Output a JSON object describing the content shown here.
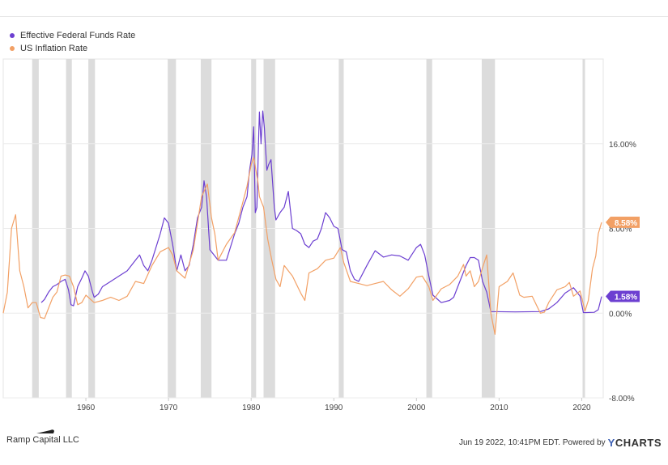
{
  "legend": {
    "items": [
      {
        "label": "Effective Federal Funds Rate",
        "color": "#6c3fd1"
      },
      {
        "label": "US Inflation Rate",
        "color": "#f2a065"
      }
    ]
  },
  "footer": {
    "left": "Ramp Capital LLC",
    "right": "Jun 19 2022, 10:41PM EDT. Powered by",
    "brand_y": "Y",
    "brand_rest": "CHARTS"
  },
  "chart_data": {
    "type": "line",
    "xlim": [
      1950,
      2022.6
    ],
    "ylim": [
      -8,
      24
    ],
    "y_ticks": [
      {
        "value": 16,
        "label": "16.00%"
      },
      {
        "value": 8,
        "label": "8.00%"
      },
      {
        "value": 0,
        "label": "0.00%"
      },
      {
        "value": -8,
        "label": "-8.00%"
      }
    ],
    "x_ticks": [
      {
        "value": 1960,
        "label": "1960"
      },
      {
        "value": 1970,
        "label": "1970"
      },
      {
        "value": 1980,
        "label": "1980"
      },
      {
        "value": 1990,
        "label": "1990"
      },
      {
        "value": 2000,
        "label": "2000"
      },
      {
        "value": 2010,
        "label": "2010"
      },
      {
        "value": 2020,
        "label": "2020"
      }
    ],
    "recessions": [
      [
        1953.5,
        1954.3
      ],
      [
        1957.6,
        1958.3
      ],
      [
        1960.3,
        1961.1
      ],
      [
        1969.9,
        1970.9
      ],
      [
        1973.9,
        1975.2
      ],
      [
        1980.0,
        1980.6
      ],
      [
        1981.5,
        1982.9
      ],
      [
        1990.6,
        1991.2
      ],
      [
        2001.2,
        2001.9
      ],
      [
        2007.9,
        2009.5
      ],
      [
        2020.1,
        2020.4
      ]
    ],
    "series": [
      {
        "name": "Effective Federal Funds Rate",
        "color": "#6c3fd1",
        "end_label": "1.58%",
        "points": [
          [
            1954.6,
            1.0
          ],
          [
            1955.0,
            1.3
          ],
          [
            1955.5,
            2.0
          ],
          [
            1956.0,
            2.5
          ],
          [
            1956.5,
            2.7
          ],
          [
            1957.0,
            3.0
          ],
          [
            1957.5,
            3.2
          ],
          [
            1957.9,
            2.2
          ],
          [
            1958.2,
            0.8
          ],
          [
            1958.5,
            0.7
          ],
          [
            1959.0,
            2.5
          ],
          [
            1959.5,
            3.3
          ],
          [
            1959.9,
            4.0
          ],
          [
            1960.3,
            3.5
          ],
          [
            1960.8,
            2.0
          ],
          [
            1961.0,
            1.5
          ],
          [
            1961.5,
            1.8
          ],
          [
            1962.0,
            2.5
          ],
          [
            1963.0,
            3.0
          ],
          [
            1964.0,
            3.5
          ],
          [
            1965.0,
            4.0
          ],
          [
            1966.0,
            5.0
          ],
          [
            1966.5,
            5.5
          ],
          [
            1967.0,
            4.5
          ],
          [
            1967.5,
            4.0
          ],
          [
            1968.0,
            5.0
          ],
          [
            1969.0,
            7.5
          ],
          [
            1969.5,
            9.0
          ],
          [
            1970.0,
            8.5
          ],
          [
            1970.5,
            6.5
          ],
          [
            1971.0,
            4.0
          ],
          [
            1971.5,
            5.5
          ],
          [
            1972.0,
            4.0
          ],
          [
            1972.5,
            4.5
          ],
          [
            1973.0,
            6.5
          ],
          [
            1973.5,
            9.0
          ],
          [
            1974.0,
            10.0
          ],
          [
            1974.3,
            12.5
          ],
          [
            1974.6,
            11.0
          ],
          [
            1975.0,
            6.0
          ],
          [
            1975.5,
            5.5
          ],
          [
            1976.0,
            5.0
          ],
          [
            1977.0,
            5.0
          ],
          [
            1978.0,
            7.5
          ],
          [
            1978.5,
            8.5
          ],
          [
            1979.0,
            10.0
          ],
          [
            1979.5,
            11.0
          ],
          [
            1979.8,
            13.5
          ],
          [
            1980.1,
            15.0
          ],
          [
            1980.3,
            17.6
          ],
          [
            1980.5,
            9.5
          ],
          [
            1980.7,
            10.0
          ],
          [
            1980.9,
            16.5
          ],
          [
            1981.0,
            19.0
          ],
          [
            1981.2,
            16.0
          ],
          [
            1981.4,
            19.1
          ],
          [
            1981.6,
            17.5
          ],
          [
            1981.9,
            13.5
          ],
          [
            1982.1,
            14.0
          ],
          [
            1982.4,
            14.5
          ],
          [
            1982.8,
            10.0
          ],
          [
            1983.0,
            8.8
          ],
          [
            1983.5,
            9.5
          ],
          [
            1984.0,
            10.0
          ],
          [
            1984.5,
            11.5
          ],
          [
            1985.0,
            8.0
          ],
          [
            1985.5,
            7.8
          ],
          [
            1986.0,
            7.5
          ],
          [
            1986.5,
            6.5
          ],
          [
            1987.0,
            6.2
          ],
          [
            1987.5,
            6.8
          ],
          [
            1988.0,
            7.0
          ],
          [
            1988.5,
            8.0
          ],
          [
            1989.0,
            9.5
          ],
          [
            1989.5,
            9.0
          ],
          [
            1990.0,
            8.2
          ],
          [
            1990.5,
            8.0
          ],
          [
            1991.0,
            6.0
          ],
          [
            1991.5,
            5.8
          ],
          [
            1992.0,
            4.0
          ],
          [
            1992.5,
            3.2
          ],
          [
            1993.0,
            3.0
          ],
          [
            1994.0,
            4.5
          ],
          [
            1995.0,
            5.9
          ],
          [
            1996.0,
            5.3
          ],
          [
            1997.0,
            5.5
          ],
          [
            1998.0,
            5.4
          ],
          [
            1999.0,
            5.0
          ],
          [
            2000.0,
            6.2
          ],
          [
            2000.5,
            6.5
          ],
          [
            2001.0,
            5.5
          ],
          [
            2001.5,
            3.5
          ],
          [
            2002.0,
            1.7
          ],
          [
            2003.0,
            1.0
          ],
          [
            2004.0,
            1.2
          ],
          [
            2004.5,
            1.5
          ],
          [
            2005.0,
            2.5
          ],
          [
            2006.0,
            4.5
          ],
          [
            2006.5,
            5.25
          ],
          [
            2007.0,
            5.25
          ],
          [
            2007.5,
            5.0
          ],
          [
            2008.0,
            3.0
          ],
          [
            2008.5,
            2.0
          ],
          [
            2009.0,
            0.15
          ],
          [
            2012.0,
            0.12
          ],
          [
            2015.0,
            0.15
          ],
          [
            2016.0,
            0.4
          ],
          [
            2017.0,
            1.0
          ],
          [
            2018.0,
            1.9
          ],
          [
            2019.0,
            2.4
          ],
          [
            2019.8,
            1.6
          ],
          [
            2020.2,
            0.05
          ],
          [
            2021.5,
            0.08
          ],
          [
            2022.0,
            0.33
          ],
          [
            2022.4,
            1.58
          ]
        ]
      },
      {
        "name": "US Inflation Rate",
        "color": "#f2a065",
        "end_label": "8.58%",
        "points": [
          [
            1950.0,
            0.0
          ],
          [
            1950.5,
            2.0
          ],
          [
            1951.0,
            8.0
          ],
          [
            1951.5,
            9.3
          ],
          [
            1952.0,
            4.0
          ],
          [
            1952.5,
            2.5
          ],
          [
            1953.0,
            0.5
          ],
          [
            1953.5,
            1.0
          ],
          [
            1954.0,
            1.0
          ],
          [
            1954.5,
            -0.4
          ],
          [
            1955.0,
            -0.5
          ],
          [
            1955.5,
            0.5
          ],
          [
            1956.0,
            1.5
          ],
          [
            1956.5,
            2.0
          ],
          [
            1957.0,
            3.5
          ],
          [
            1957.5,
            3.6
          ],
          [
            1958.0,
            3.5
          ],
          [
            1958.5,
            2.5
          ],
          [
            1959.0,
            0.8
          ],
          [
            1959.5,
            1.0
          ],
          [
            1960.0,
            1.7
          ],
          [
            1961.0,
            1.0
          ],
          [
            1962.0,
            1.2
          ],
          [
            1963.0,
            1.5
          ],
          [
            1964.0,
            1.2
          ],
          [
            1965.0,
            1.6
          ],
          [
            1966.0,
            3.0
          ],
          [
            1967.0,
            2.8
          ],
          [
            1968.0,
            4.5
          ],
          [
            1969.0,
            5.8
          ],
          [
            1970.0,
            6.2
          ],
          [
            1970.5,
            5.5
          ],
          [
            1971.0,
            4.0
          ],
          [
            1972.0,
            3.3
          ],
          [
            1973.0,
            6.0
          ],
          [
            1974.0,
            11.0
          ],
          [
            1974.7,
            12.2
          ],
          [
            1975.2,
            9.0
          ],
          [
            1975.6,
            7.5
          ],
          [
            1976.0,
            5.0
          ],
          [
            1977.0,
            6.5
          ],
          [
            1978.0,
            7.6
          ],
          [
            1979.0,
            10.5
          ],
          [
            1979.5,
            12.0
          ],
          [
            1980.0,
            14.0
          ],
          [
            1980.3,
            14.7
          ],
          [
            1980.8,
            12.5
          ],
          [
            1981.0,
            11.0
          ],
          [
            1981.5,
            10.0
          ],
          [
            1982.0,
            7.0
          ],
          [
            1982.5,
            5.0
          ],
          [
            1983.0,
            3.2
          ],
          [
            1983.5,
            2.5
          ],
          [
            1984.0,
            4.5
          ],
          [
            1984.5,
            4.0
          ],
          [
            1985.0,
            3.5
          ],
          [
            1986.0,
            1.9
          ],
          [
            1986.5,
            1.2
          ],
          [
            1987.0,
            3.8
          ],
          [
            1988.0,
            4.2
          ],
          [
            1989.0,
            5.0
          ],
          [
            1990.0,
            5.2
          ],
          [
            1990.8,
            6.2
          ],
          [
            1991.2,
            4.8
          ],
          [
            1992.0,
            3.0
          ],
          [
            1993.0,
            2.8
          ],
          [
            1994.0,
            2.6
          ],
          [
            1995.0,
            2.8
          ],
          [
            1996.0,
            3.0
          ],
          [
            1997.0,
            2.2
          ],
          [
            1998.0,
            1.6
          ],
          [
            1999.0,
            2.3
          ],
          [
            2000.0,
            3.4
          ],
          [
            2000.7,
            3.5
          ],
          [
            2001.5,
            2.5
          ],
          [
            2002.0,
            1.2
          ],
          [
            2003.0,
            2.3
          ],
          [
            2004.0,
            2.7
          ],
          [
            2005.0,
            3.5
          ],
          [
            2005.7,
            4.6
          ],
          [
            2006.0,
            3.5
          ],
          [
            2006.5,
            4.0
          ],
          [
            2007.0,
            2.5
          ],
          [
            2007.5,
            3.0
          ],
          [
            2008.0,
            4.3
          ],
          [
            2008.5,
            5.5
          ],
          [
            2009.0,
            0.0
          ],
          [
            2009.5,
            -2.0
          ],
          [
            2010.0,
            2.5
          ],
          [
            2011.0,
            3.0
          ],
          [
            2011.7,
            3.8
          ],
          [
            2012.5,
            1.7
          ],
          [
            2013.0,
            1.5
          ],
          [
            2014.0,
            1.6
          ],
          [
            2015.0,
            0.0
          ],
          [
            2015.5,
            0.1
          ],
          [
            2016.0,
            1.0
          ],
          [
            2017.0,
            2.2
          ],
          [
            2018.0,
            2.5
          ],
          [
            2018.5,
            2.9
          ],
          [
            2019.0,
            1.6
          ],
          [
            2019.8,
            2.1
          ],
          [
            2020.4,
            0.2
          ],
          [
            2020.8,
            1.2
          ],
          [
            2021.3,
            4.2
          ],
          [
            2021.7,
            5.4
          ],
          [
            2022.0,
            7.5
          ],
          [
            2022.4,
            8.58
          ]
        ]
      }
    ]
  }
}
